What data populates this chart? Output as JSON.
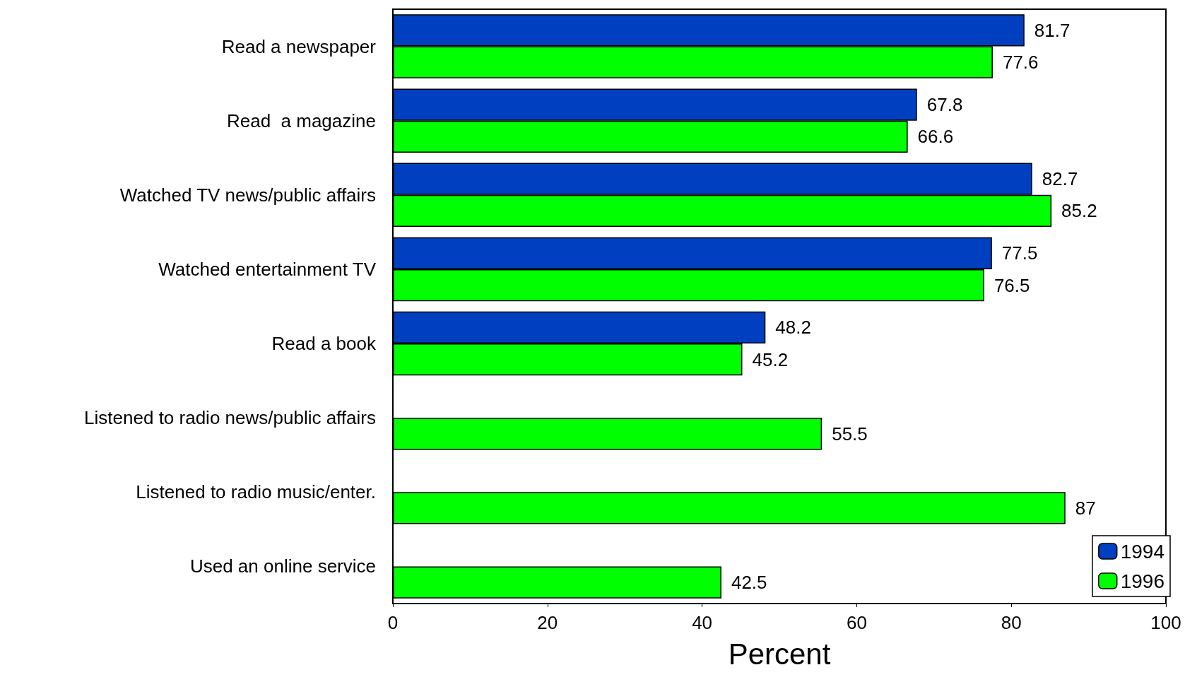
{
  "chart_data": {
    "type": "bar",
    "orientation": "horizontal",
    "xlabel": "Percent",
    "categories": [
      "Read a newspaper",
      "Read  a magazine",
      "Watched TV news/public affairs",
      "Watched entertainment TV",
      "Read a book",
      "Listened to radio news/public affairs",
      "Listened to radio music/enter.",
      "Used an online service"
    ],
    "series": [
      {
        "name": "1994",
        "color": "#0040c0",
        "values": [
          81.7,
          67.8,
          82.7,
          77.5,
          48.2,
          null,
          null,
          null
        ]
      },
      {
        "name": "1996",
        "color": "#00ff00",
        "values": [
          77.6,
          66.6,
          85.2,
          76.5,
          45.2,
          55.5,
          87,
          42.5
        ]
      }
    ],
    "xlim": [
      0,
      100
    ],
    "xticks": [
      0,
      20,
      40,
      60,
      80,
      100
    ],
    "grid": false,
    "legend": "bottom right",
    "data_labels": true
  }
}
